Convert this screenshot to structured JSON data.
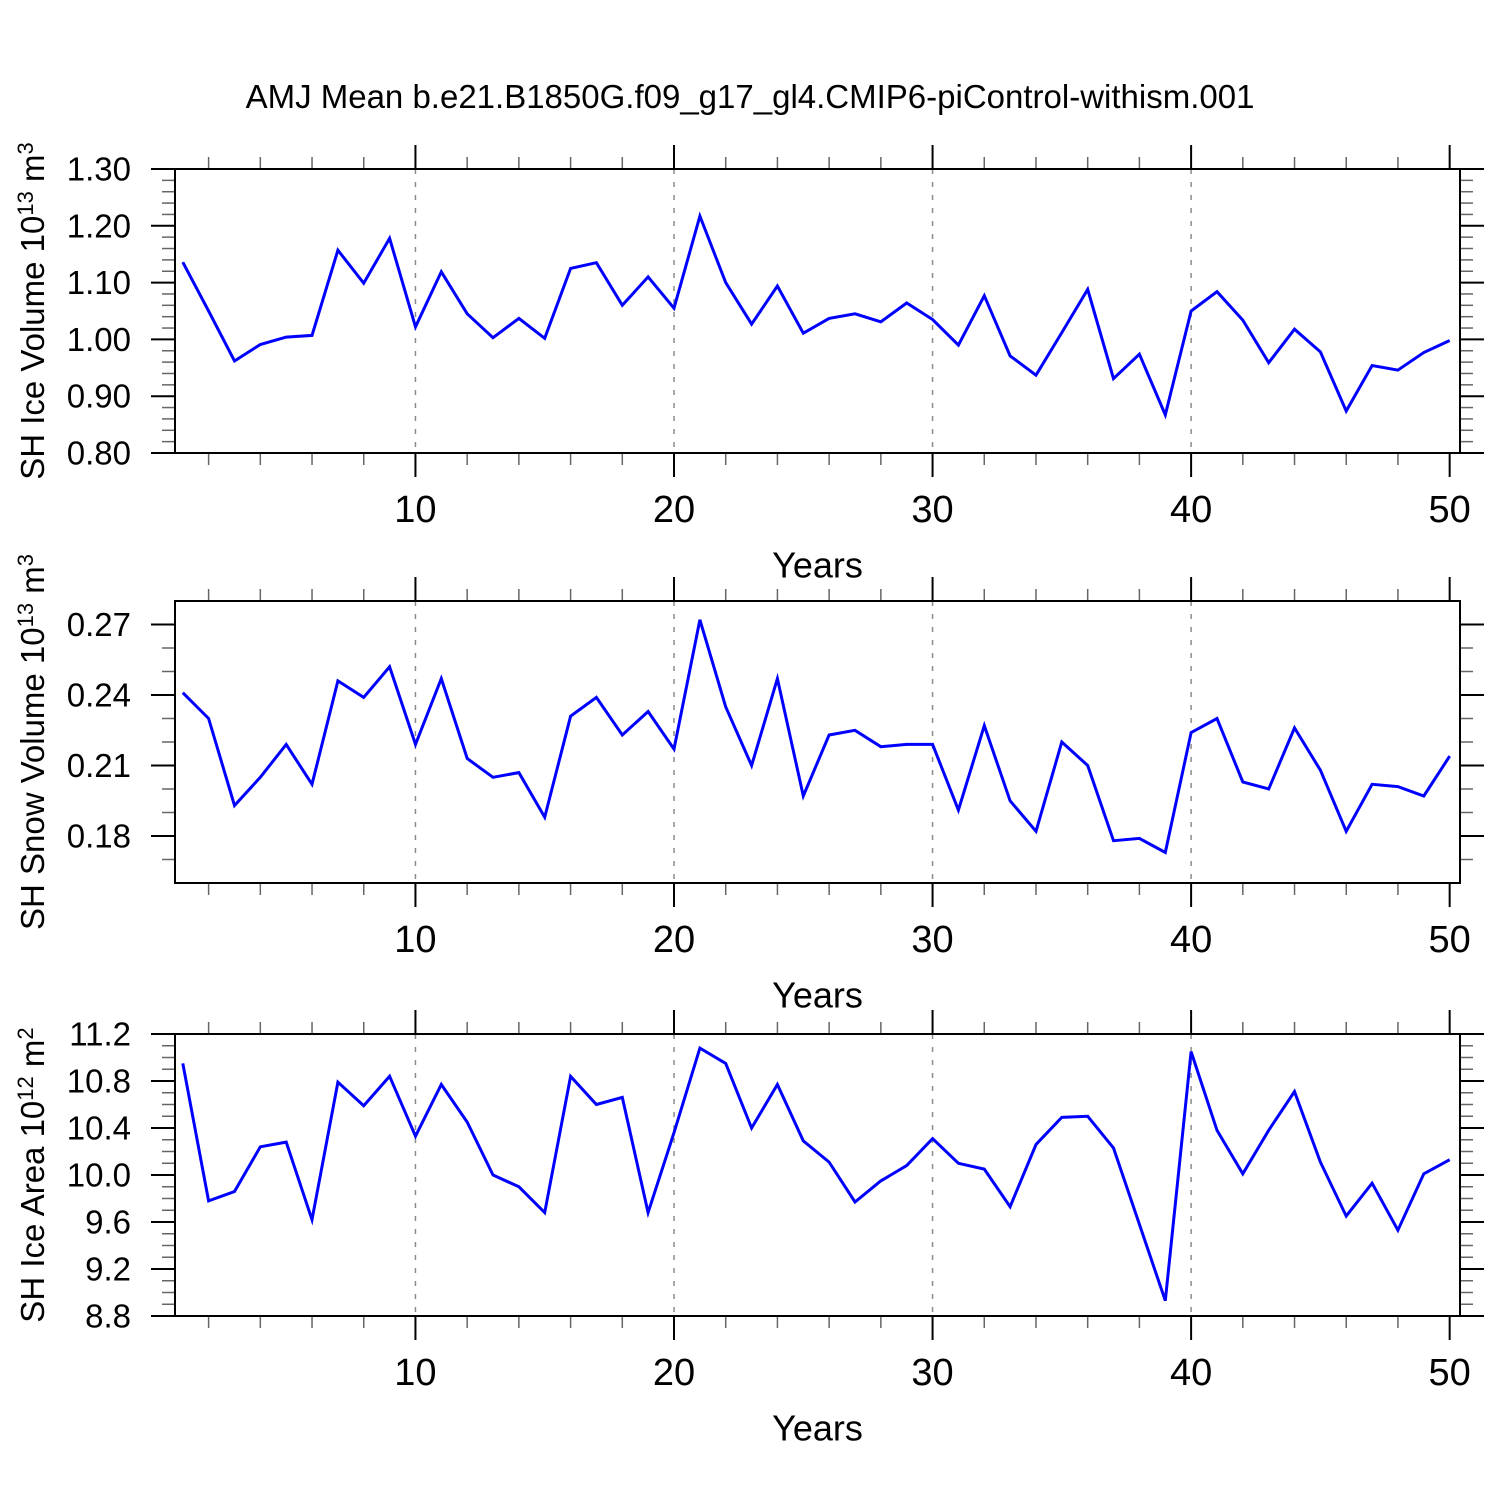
{
  "title": "AMJ Mean b.e21.B1850G.f09_g17_gl4.CMIP6-piControl-withism.001",
  "colors": {
    "line": "#0000ff",
    "grid": "#8c8c8c",
    "axis": "#000000",
    "minor_tick": "#666666",
    "background": "#ffffff"
  },
  "chart_data": [
    {
      "type": "line",
      "name": "sh-ice-volume",
      "xlabel": "Years",
      "ylabel_text": "SH Ice Volume 10^13 m^3",
      "ylabel_parts": [
        {
          "t": "SH Ice Volume 10"
        },
        {
          "t": "13",
          "sup": true
        },
        {
          "t": " m"
        },
        {
          "t": "3",
          "sup": true
        }
      ],
      "xlim": [
        0.7,
        50.4
      ],
      "ylim": [
        0.8,
        1.3
      ],
      "grid_x": [
        10,
        20,
        30,
        40
      ],
      "xticks_major": [
        10,
        20,
        30,
        40,
        50
      ],
      "xtick_labels": [
        "10",
        "20",
        "30",
        "40",
        "50"
      ],
      "xticks_minor": [
        2,
        4,
        6,
        8,
        12,
        14,
        16,
        18,
        22,
        24,
        26,
        28,
        32,
        34,
        36,
        38,
        42,
        44,
        46,
        48
      ],
      "yticks_major": [
        0.8,
        0.9,
        1.0,
        1.1,
        1.2,
        1.3
      ],
      "ytick_labels": [
        "0.80",
        "0.90",
        "1.00",
        "1.10",
        "1.20",
        "1.30"
      ],
      "yticks_minor": [
        0.82,
        0.84,
        0.86,
        0.88,
        0.92,
        0.94,
        0.96,
        0.98,
        1.02,
        1.04,
        1.06,
        1.08,
        1.12,
        1.14,
        1.16,
        1.18,
        1.22,
        1.24,
        1.26,
        1.28
      ],
      "x": [
        1,
        2,
        3,
        4,
        5,
        6,
        7,
        8,
        9,
        10,
        11,
        12,
        13,
        14,
        15,
        16,
        17,
        18,
        19,
        20,
        21,
        22,
        23,
        24,
        25,
        26,
        27,
        28,
        29,
        30,
        31,
        32,
        33,
        34,
        35,
        36,
        37,
        38,
        39,
        40,
        41,
        42,
        43,
        44,
        45,
        46,
        47,
        48,
        49,
        50
      ],
      "values": [
        1.136,
        1.05,
        0.962,
        0.991,
        1.004,
        1.007,
        1.157,
        1.099,
        1.178,
        1.022,
        1.119,
        1.045,
        1.003,
        1.037,
        1.002,
        1.125,
        1.135,
        1.06,
        1.11,
        1.055,
        1.217,
        1.1,
        1.027,
        1.094,
        1.011,
        1.037,
        1.045,
        1.031,
        1.064,
        1.035,
        0.99,
        1.077,
        0.971,
        0.937,
        1.012,
        1.088,
        0.931,
        0.974,
        0.867,
        1.05,
        1.084,
        1.034,
        0.959,
        1.018,
        0.978,
        0.874,
        0.954,
        0.946,
        0.977,
        0.998
      ]
    },
    {
      "type": "line",
      "name": "sh-snow-volume",
      "xlabel": "Years",
      "ylabel_text": "SH Snow Volume 10^13 m^3",
      "ylabel_parts": [
        {
          "t": "SH Snow Volume 10"
        },
        {
          "t": "13",
          "sup": true
        },
        {
          "t": " m"
        },
        {
          "t": "3",
          "sup": true
        }
      ],
      "xlim": [
        0.7,
        50.4
      ],
      "ylim": [
        0.16,
        0.28
      ],
      "grid_x": [
        10,
        20,
        30,
        40
      ],
      "xticks_major": [
        10,
        20,
        30,
        40,
        50
      ],
      "xtick_labels": [
        "10",
        "20",
        "30",
        "40",
        "50"
      ],
      "xticks_minor": [
        2,
        4,
        6,
        8,
        12,
        14,
        16,
        18,
        22,
        24,
        26,
        28,
        32,
        34,
        36,
        38,
        42,
        44,
        46,
        48
      ],
      "yticks_major": [
        0.18,
        0.21,
        0.24,
        0.27
      ],
      "ytick_labels": [
        "0.18",
        "0.21",
        "0.24",
        "0.27"
      ],
      "yticks_minor": [
        0.17,
        0.19,
        0.2,
        0.22,
        0.23,
        0.25,
        0.26
      ],
      "x": [
        1,
        2,
        3,
        4,
        5,
        6,
        7,
        8,
        9,
        10,
        11,
        12,
        13,
        14,
        15,
        16,
        17,
        18,
        19,
        20,
        21,
        22,
        23,
        24,
        25,
        26,
        27,
        28,
        29,
        30,
        31,
        32,
        33,
        34,
        35,
        36,
        37,
        38,
        39,
        40,
        41,
        42,
        43,
        44,
        45,
        46,
        47,
        48,
        49,
        50
      ],
      "values": [
        0.241,
        0.23,
        0.193,
        0.205,
        0.219,
        0.202,
        0.246,
        0.239,
        0.252,
        0.219,
        0.247,
        0.213,
        0.205,
        0.207,
        0.188,
        0.231,
        0.239,
        0.223,
        0.233,
        0.217,
        0.272,
        0.235,
        0.21,
        0.247,
        0.197,
        0.223,
        0.225,
        0.218,
        0.219,
        0.219,
        0.191,
        0.227,
        0.195,
        0.182,
        0.22,
        0.21,
        0.178,
        0.179,
        0.173,
        0.224,
        0.23,
        0.203,
        0.2,
        0.226,
        0.208,
        0.182,
        0.202,
        0.201,
        0.197,
        0.214
      ]
    },
    {
      "type": "line",
      "name": "sh-ice-area",
      "xlabel": "Years",
      "ylabel_text": "SH Ice Area 10^12 m^2",
      "ylabel_parts": [
        {
          "t": "SH Ice Area 10"
        },
        {
          "t": "12",
          "sup": true
        },
        {
          "t": " m"
        },
        {
          "t": "2",
          "sup": true
        }
      ],
      "xlim": [
        0.7,
        50.4
      ],
      "ylim": [
        8.8,
        11.2
      ],
      "grid_x": [
        10,
        20,
        30,
        40
      ],
      "xticks_major": [
        10,
        20,
        30,
        40,
        50
      ],
      "xtick_labels": [
        "10",
        "20",
        "30",
        "40",
        "50"
      ],
      "xticks_minor": [
        2,
        4,
        6,
        8,
        12,
        14,
        16,
        18,
        22,
        24,
        26,
        28,
        32,
        34,
        36,
        38,
        42,
        44,
        46,
        48
      ],
      "yticks_major": [
        8.8,
        9.2,
        9.6,
        10.0,
        10.4,
        10.8,
        11.2
      ],
      "ytick_labels": [
        "8.8",
        "9.2",
        "9.6",
        "10.0",
        "10.4",
        "10.8",
        "11.2"
      ],
      "yticks_minor": [
        8.9,
        9.0,
        9.1,
        9.3,
        9.4,
        9.5,
        9.7,
        9.8,
        9.9,
        10.1,
        10.2,
        10.3,
        10.5,
        10.6,
        10.7,
        10.9,
        11.0,
        11.1
      ],
      "x": [
        1,
        2,
        3,
        4,
        5,
        6,
        7,
        8,
        9,
        10,
        11,
        12,
        13,
        14,
        15,
        16,
        17,
        18,
        19,
        20,
        21,
        22,
        23,
        24,
        25,
        26,
        27,
        28,
        29,
        30,
        31,
        32,
        33,
        34,
        35,
        36,
        37,
        38,
        39,
        40,
        41,
        42,
        43,
        44,
        45,
        46,
        47,
        48,
        49,
        50
      ],
      "values": [
        10.95,
        9.78,
        9.86,
        10.24,
        10.28,
        9.62,
        10.79,
        10.59,
        10.84,
        10.33,
        10.77,
        10.45,
        10.0,
        9.9,
        9.68,
        10.84,
        10.6,
        10.66,
        9.68,
        10.36,
        11.08,
        10.95,
        10.4,
        10.77,
        10.29,
        10.11,
        9.77,
        9.95,
        10.08,
        10.31,
        10.1,
        10.05,
        9.73,
        10.26,
        10.49,
        10.5,
        10.23,
        9.58,
        8.93,
        11.05,
        10.38,
        10.01,
        10.38,
        10.71,
        10.11,
        9.65,
        9.93,
        9.53,
        10.01,
        10.13
      ]
    }
  ]
}
